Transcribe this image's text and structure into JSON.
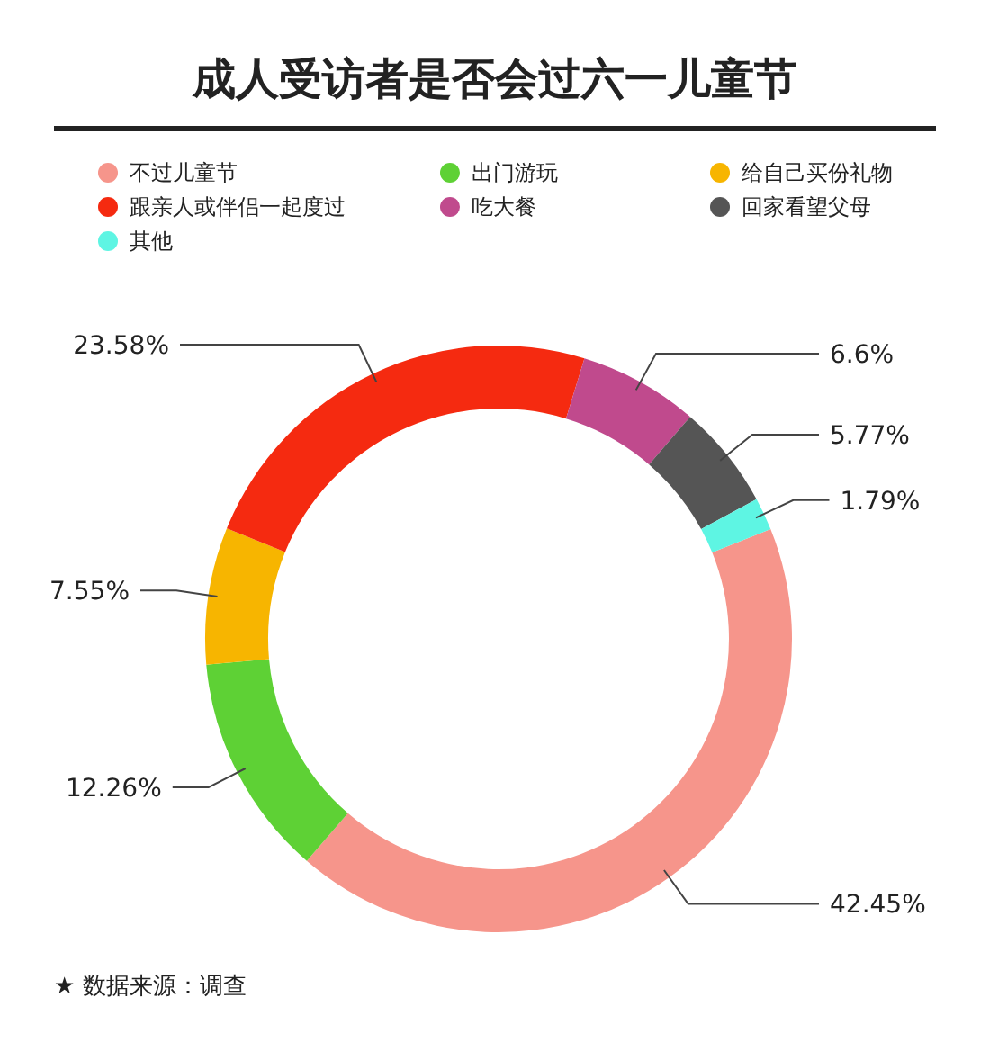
{
  "chart_data": {
    "type": "donut",
    "title": "成人受访者是否会过六一儿童节",
    "categories": [
      "不过儿童节",
      "出门游玩",
      "给自己买份礼物",
      "跟亲人或伴侣一起度过",
      "吃大餐",
      "回家看望父母",
      "其他"
    ],
    "values": [
      42.45,
      12.26,
      7.55,
      23.58,
      6.6,
      5.77,
      1.79
    ],
    "colors": [
      "#f6958b",
      "#5ed135",
      "#f7b500",
      "#f52a10",
      "#c04a8d",
      "#555555",
      "#5ef5e3"
    ],
    "value_labels": [
      "42.45%",
      "12.26%",
      "7.55%",
      "23.58%",
      "6.6%",
      "5.77%",
      "1.79%"
    ],
    "legend": "top",
    "annotations": [
      "★ 数据来源：调查"
    ]
  }
}
